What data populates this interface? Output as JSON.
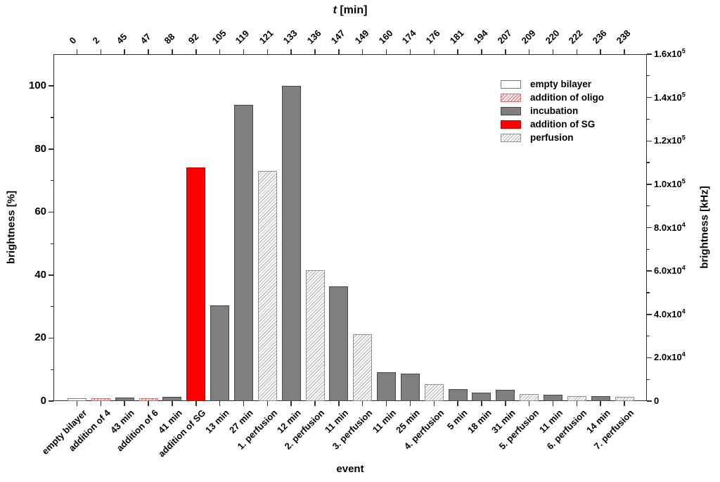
{
  "figure": {
    "top_axis": {
      "title_italic": "t",
      "title_rest": " [min]",
      "tick_labels": [
        "0",
        "2",
        "45",
        "47",
        "88",
        "92",
        "105",
        "119",
        "121",
        "133",
        "136",
        "147",
        "149",
        "160",
        "174",
        "176",
        "181",
        "194",
        "207",
        "209",
        "220",
        "222",
        "236",
        "238"
      ]
    },
    "left_axis": {
      "label": "brightness [%]",
      "major_ticks": [
        0,
        20,
        40,
        60,
        80,
        100
      ],
      "minor_ticks": [
        10,
        30,
        50,
        70,
        90
      ]
    },
    "right_axis": {
      "label": "brightness [kHz]",
      "major_ticks": [
        {
          "v": 0,
          "base": "0",
          "exp": ""
        },
        {
          "v": 20000,
          "base": "2.0x10",
          "exp": "4"
        },
        {
          "v": 40000,
          "base": "4.0x10",
          "exp": "4"
        },
        {
          "v": 60000,
          "base": "6.0x10",
          "exp": "4"
        },
        {
          "v": 80000,
          "base": "8.0x10",
          "exp": "4"
        },
        {
          "v": 100000,
          "base": "1.0x10",
          "exp": "5"
        },
        {
          "v": 120000,
          "base": "1.2x10",
          "exp": "5"
        },
        {
          "v": 140000,
          "base": "1.4x10",
          "exp": "5"
        },
        {
          "v": 160000,
          "base": "1.6x10",
          "exp": "5"
        }
      ],
      "minor_ticks": [
        10000,
        30000,
        50000,
        70000,
        90000,
        110000,
        130000,
        150000
      ]
    },
    "bottom_axis": {
      "label": "event"
    }
  },
  "legend": {
    "items": [
      {
        "label": "empty bilayer",
        "type": "empty_bilayer"
      },
      {
        "label": "addition of oligo",
        "type": "addition_of_oligo"
      },
      {
        "label": "incubation",
        "type": "incubation"
      },
      {
        "label": "addition of SG",
        "type": "addition_of_sg"
      },
      {
        "label": "perfusion",
        "type": "perfusion"
      }
    ]
  },
  "colors": {
    "incubation_gray": "#7f7f7f",
    "sg_red": "#fe0000",
    "oligo_hatch_red": "#ef5350",
    "perfusion_hatch_gray": "#ababab",
    "axis": "#2f2f2f"
  },
  "chart_data": {
    "type": "bar",
    "title": "",
    "xlabel": "event",
    "ylabel": "brightness [%]",
    "y2label": "brightness [kHz]",
    "ylim": [
      0,
      110.1
    ],
    "y2lim": [
      0,
      160000
    ],
    "grid": false,
    "legend_position": "top-right",
    "categories": [
      "empty bilayer",
      "addition of 4",
      "43 min",
      "addition of 6",
      "41 min",
      "addition of SG",
      "13 min",
      "27 min",
      "1. perfusion",
      "12 min",
      "2. perfusion",
      "11 min",
      "3. perfusion",
      "11 min",
      "25 min",
      "4. perfusion",
      "5 min",
      "18 min",
      "31 min",
      "5. perfusion",
      "11 min",
      "6. perfusion",
      "14 min",
      "7. perfusion"
    ],
    "t_min": [
      0,
      2,
      45,
      47,
      88,
      92,
      105,
      119,
      121,
      133,
      136,
      147,
      149,
      160,
      174,
      176,
      181,
      194,
      207,
      209,
      220,
      222,
      236,
      238
    ],
    "values": [
      0.9,
      0.9,
      1.1,
      1.0,
      1.3,
      74.1,
      30.4,
      94.0,
      73.0,
      100.0,
      41.5,
      36.3,
      21.2,
      9.2,
      8.8,
      5.3,
      3.7,
      2.7,
      3.5,
      2.2,
      1.9,
      1.6,
      1.5,
      1.4
    ],
    "bar_types": [
      "empty_bilayer",
      "addition_of_oligo",
      "incubation",
      "addition_of_oligo",
      "incubation",
      "addition_of_sg",
      "incubation",
      "incubation",
      "perfusion",
      "incubation",
      "perfusion",
      "incubation",
      "perfusion",
      "incubation",
      "incubation",
      "perfusion",
      "incubation",
      "incubation",
      "incubation",
      "perfusion",
      "incubation",
      "perfusion",
      "incubation",
      "perfusion"
    ]
  }
}
